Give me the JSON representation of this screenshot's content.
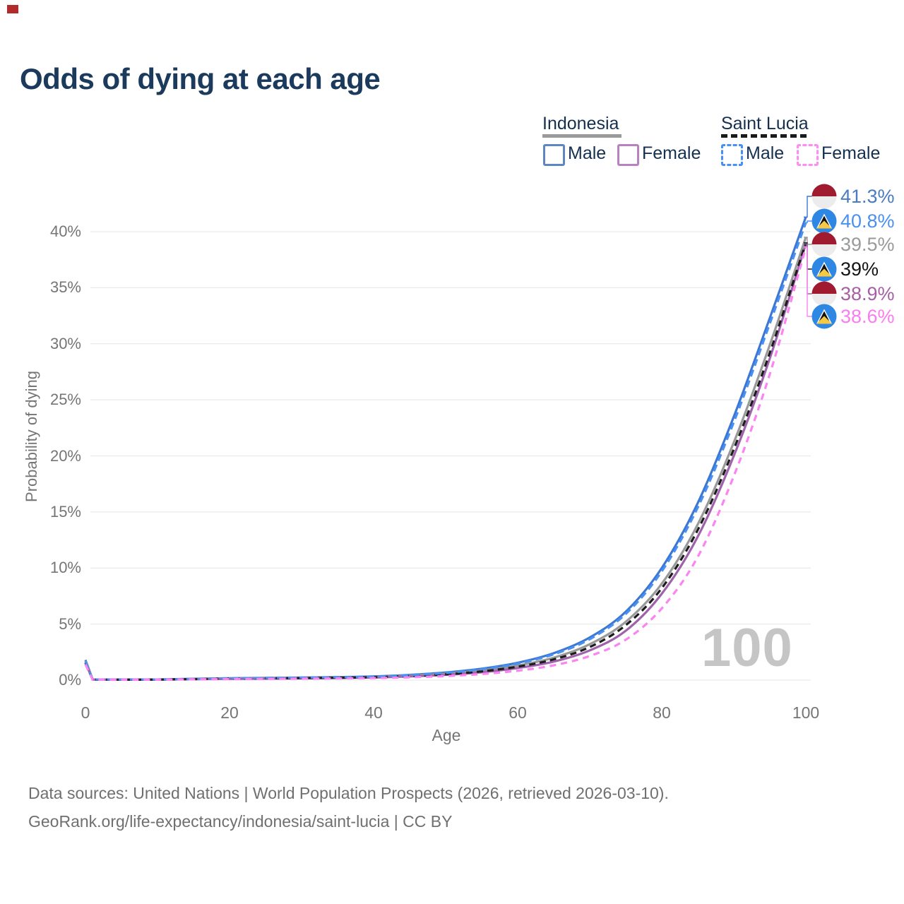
{
  "window": {
    "top_left_marker_color": "#b22a2a"
  },
  "title": "Odds of dying at each age",
  "legend": {
    "groups": [
      {
        "name": "Indonesia",
        "line_style": "solid",
        "line_color": "#9a9a9a",
        "items": [
          {
            "label": "Male",
            "color": "#5e86c2"
          },
          {
            "label": "Female",
            "color": "#b881c0"
          }
        ]
      },
      {
        "name": "Saint Lucia",
        "line_style": "dashed",
        "line_color": "#1a1a1a",
        "items": [
          {
            "label": "Male",
            "color": "#4a90f0"
          },
          {
            "label": "Female",
            "color": "#fc8df4"
          }
        ]
      }
    ]
  },
  "watermark_age": "100",
  "footer": {
    "line1": "Data sources: United Nations | World Population Prospects (2026, retrieved 2026-03-10).",
    "line2": "GeoRank.org/life-expectancy/indonesia/saint-lucia | CC BY"
  },
  "chart_data": {
    "type": "line",
    "title": "Odds of dying at each age",
    "xlabel": "Age",
    "ylabel": "Probability of dying",
    "xlim": [
      0,
      100
    ],
    "ylim": [
      0,
      43.5
    ],
    "grid": "horizontal",
    "legend_position": "top-right",
    "x_ticks": {
      "labels": [
        "0",
        "20",
        "40",
        "60",
        "80",
        "100"
      ],
      "values": [
        0,
        20,
        40,
        60,
        80,
        100
      ]
    },
    "y_ticks": {
      "labels": [
        "0%",
        "5%",
        "10%",
        "15%",
        "20%",
        "25%",
        "30%",
        "35%",
        "40%"
      ],
      "values": [
        0,
        5,
        10,
        15,
        20,
        25,
        30,
        35,
        40
      ]
    },
    "x": [
      0,
      1,
      5,
      10,
      15,
      20,
      25,
      30,
      35,
      40,
      45,
      50,
      55,
      60,
      65,
      70,
      75,
      80,
      85,
      90,
      95,
      100
    ],
    "series": [
      {
        "name": "Indonesia Male",
        "country": "Indonesia",
        "sex": "Male",
        "color": "#3c78d3",
        "dash": "solid",
        "flag": "indonesia",
        "end_label": "41.3%",
        "end_label_color": "#4a7cc2",
        "values": [
          1.8,
          0.06,
          0.05,
          0.06,
          0.12,
          0.17,
          0.2,
          0.23,
          0.27,
          0.33,
          0.47,
          0.68,
          1.02,
          1.55,
          2.4,
          3.8,
          6.1,
          10.0,
          15.8,
          23.5,
          32.3,
          41.3
        ]
      },
      {
        "name": "Saint Lucia Male",
        "country": "Saint Lucia",
        "sex": "Male",
        "color": "#4a90f0",
        "dash": "dashed",
        "flag": "saint-lucia",
        "end_label": "40.8%",
        "end_label_color": "#4a90ee",
        "values": [
          1.65,
          0.06,
          0.05,
          0.06,
          0.11,
          0.16,
          0.19,
          0.22,
          0.26,
          0.31,
          0.44,
          0.64,
          0.97,
          1.48,
          2.3,
          3.65,
          5.9,
          9.7,
          15.4,
          23.0,
          31.8,
          40.8
        ]
      },
      {
        "name": "Indonesia",
        "country": "Indonesia",
        "sex": "Both",
        "color": "#999999",
        "dash": "solid",
        "flag": "indonesia",
        "end_label": "39.5%",
        "end_label_color": "#9a9a9a",
        "values": [
          1.7,
          0.05,
          0.04,
          0.05,
          0.1,
          0.14,
          0.17,
          0.2,
          0.23,
          0.28,
          0.4,
          0.57,
          0.86,
          1.3,
          2.0,
          3.2,
          5.2,
          8.6,
          13.9,
          21.2,
          29.9,
          39.5
        ]
      },
      {
        "name": "Saint Lucia",
        "country": "Saint Lucia",
        "sex": "Both",
        "color": "#1c1c1c",
        "dash": "dashed",
        "flag": "saint-lucia",
        "end_label": "39%",
        "end_label_color": "#141414",
        "values": [
          1.55,
          0.05,
          0.04,
          0.05,
          0.09,
          0.13,
          0.16,
          0.18,
          0.21,
          0.26,
          0.36,
          0.52,
          0.78,
          1.2,
          1.85,
          2.95,
          4.9,
          8.2,
          13.4,
          20.6,
          29.2,
          39.0
        ]
      },
      {
        "name": "Indonesia Female",
        "country": "Indonesia",
        "sex": "Female",
        "color": "#9f63ab",
        "dash": "solid",
        "flag": "indonesia",
        "end_label": "38.9%",
        "end_label_color": "#a55fa5",
        "values": [
          1.55,
          0.05,
          0.04,
          0.05,
          0.08,
          0.11,
          0.13,
          0.16,
          0.19,
          0.23,
          0.33,
          0.47,
          0.7,
          1.08,
          1.65,
          2.65,
          4.4,
          7.7,
          12.8,
          20.0,
          28.7,
          38.9
        ]
      },
      {
        "name": "Saint Lucia Female",
        "country": "Saint Lucia",
        "sex": "Female",
        "color": "#fb84f2",
        "dash": "dashed",
        "flag": "saint-lucia",
        "end_label": "38.6%",
        "end_label_color": "#fa7cf0",
        "values": [
          1.4,
          0.04,
          0.03,
          0.04,
          0.07,
          0.09,
          0.11,
          0.13,
          0.15,
          0.18,
          0.25,
          0.36,
          0.54,
          0.84,
          1.32,
          2.15,
          3.6,
          6.4,
          11.0,
          18.2,
          27.3,
          38.6
        ]
      }
    ]
  }
}
